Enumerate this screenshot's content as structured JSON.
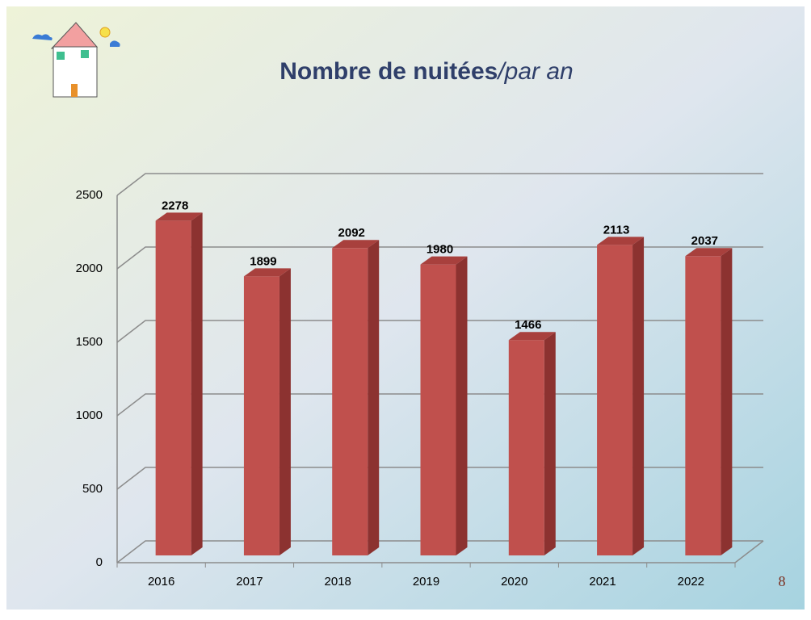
{
  "chart_data": {
    "type": "bar3d",
    "title": "Nombre de nuitées",
    "subtitle": "/par an",
    "categories": [
      "2016",
      "2017",
      "2018",
      "2019",
      "2020",
      "2021",
      "2022"
    ],
    "values": [
      2278,
      1899,
      2092,
      1980,
      1466,
      2113,
      2037
    ],
    "color": "#c0504d",
    "ylim": [
      0,
      2500
    ],
    "yticks": [
      0,
      500,
      1000,
      1500,
      2000,
      2500
    ],
    "grid": true
  },
  "page_number": "8"
}
